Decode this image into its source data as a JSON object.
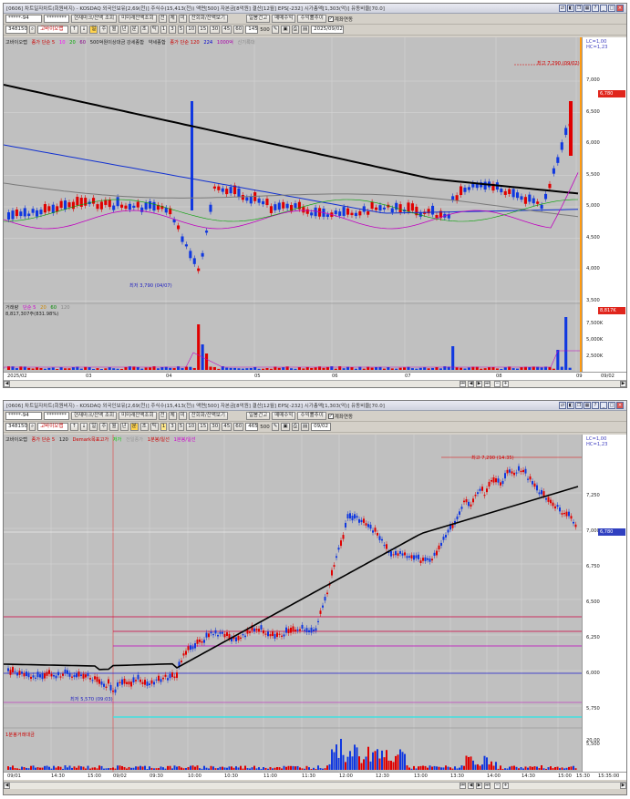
{
  "window1": {
    "title": "[0606] 차트일자차트(회원비지) - KOSDAQ 외국인보유[2,69(천)] 주식수(15,413(천)) 액면[500] 자본금[8억원] 결산[12월] EPS[-232] 시가총액[1,303(억)] 유동비율[70.0]",
    "toolbar": {
      "account_value": "*****-94",
      "password_value": "********",
      "buttons": [
        "현재마크/잔액 조회",
        "미미래잔액조회",
        "전",
        "체",
        "미",
        "잔회화/잔액보기",
        "일봉건고",
        "매매수익",
        "수익률추이"
      ],
      "exec_check": "계좌연동",
      "code_value": "348150",
      "stock_name": "고바이오랩",
      "period_buttons": [
        "주",
        "월",
        "년",
        "분",
        "초",
        "틱"
      ],
      "interval_buttons": [
        "1",
        "3",
        "5",
        "10",
        "15",
        "30",
        "45",
        "60"
      ],
      "count_value": "145",
      "count_max": "500",
      "date_value": "2025/09/02"
    },
    "legend_main": [
      "고바이오랩",
      "종가 단순 5",
      "10",
      "20",
      "60",
      "500억원이상대금 강세종합",
      "약세종합",
      "종가 단순 120",
      "224",
      "1000억",
      "신기록대"
    ],
    "legend_volume": [
      "거래량",
      "단순 5",
      "20",
      "60",
      "120"
    ],
    "volume_readout": "8,817,307주(831.98%)",
    "annotations": {
      "high": "최고 7,290 (09/02)",
      "low": "최저 3,790 (04/07)"
    },
    "price_axis": [
      "7,000",
      "6,500",
      "6,000",
      "5,500",
      "5,000",
      "4,500",
      "4,000",
      "3,500"
    ],
    "price_axis_top": "LC=1,00 HC=1,23",
    "current_price": "6,780",
    "volume_axis": [
      "7,500K",
      "5,000K",
      "2,500K"
    ],
    "volume_badge": "8,817K",
    "x_axis": [
      "2025/02",
      "03",
      "04",
      "05",
      "06",
      "07",
      "08",
      "09",
      "09/02"
    ]
  },
  "window2": {
    "title": "[0606] 차트일자차트(회원비지) - KOSDAQ 외국인보유[2,69(천)] 주식수(15,413(천)) 액면[500] 자본금[8억원] 결산[12월] EPS[-232] 시가총액[1,303(억)] 유동비율[70.0]",
    "toolbar": {
      "account_value": "*****-94",
      "password_value": "********",
      "buttons": [
        "현재마크/잔액 조회",
        "미미래잔액조회",
        "전",
        "체",
        "미",
        "잔회화/잔액보기",
        "일봉건고",
        "매매수익",
        "수익률추이"
      ],
      "exec_check": "계좌연동",
      "code_value": "348150",
      "stock_name": "고바이오랩",
      "period_buttons": [
        "주",
        "월",
        "년",
        "분",
        "초",
        "틱"
      ],
      "interval_buttons": [
        "1",
        "3",
        "5",
        "10",
        "15",
        "30",
        "45",
        "60"
      ],
      "count_value": "465",
      "count_max": "500",
      "date_value": "09/02"
    },
    "legend_main": [
      "고바이오랩",
      "종가 단순 5",
      "120",
      "Demark목표고가",
      "저가",
      "전일종가",
      "1분봉/일선",
      "1분봉/일선"
    ],
    "legend_volume": [
      "1분봉거래대금"
    ],
    "annotations": {
      "high": "최고 7,290 (14:35)",
      "low": "최저 5,570 (09:03)"
    },
    "price_axis": [
      "7,250",
      "7,000",
      "6,750",
      "6,500",
      "6,250",
      "6,000",
      "5,750",
      "5,500"
    ],
    "price_axis_top": "LC=1,00 HC=1,23",
    "current_price": "6,780",
    "volume_axis": [
      "20,00"
    ],
    "x_axis": [
      "09/01",
      "14:30",
      "15:00",
      "09/02",
      "09:30",
      "10:00",
      "10:30",
      "11:00",
      "11:30",
      "12:00",
      "12:30",
      "13:00",
      "13:30",
      "14:00",
      "14:30",
      "15:00",
      "15:30"
    ],
    "x_axis_right": "15:35:00"
  }
}
